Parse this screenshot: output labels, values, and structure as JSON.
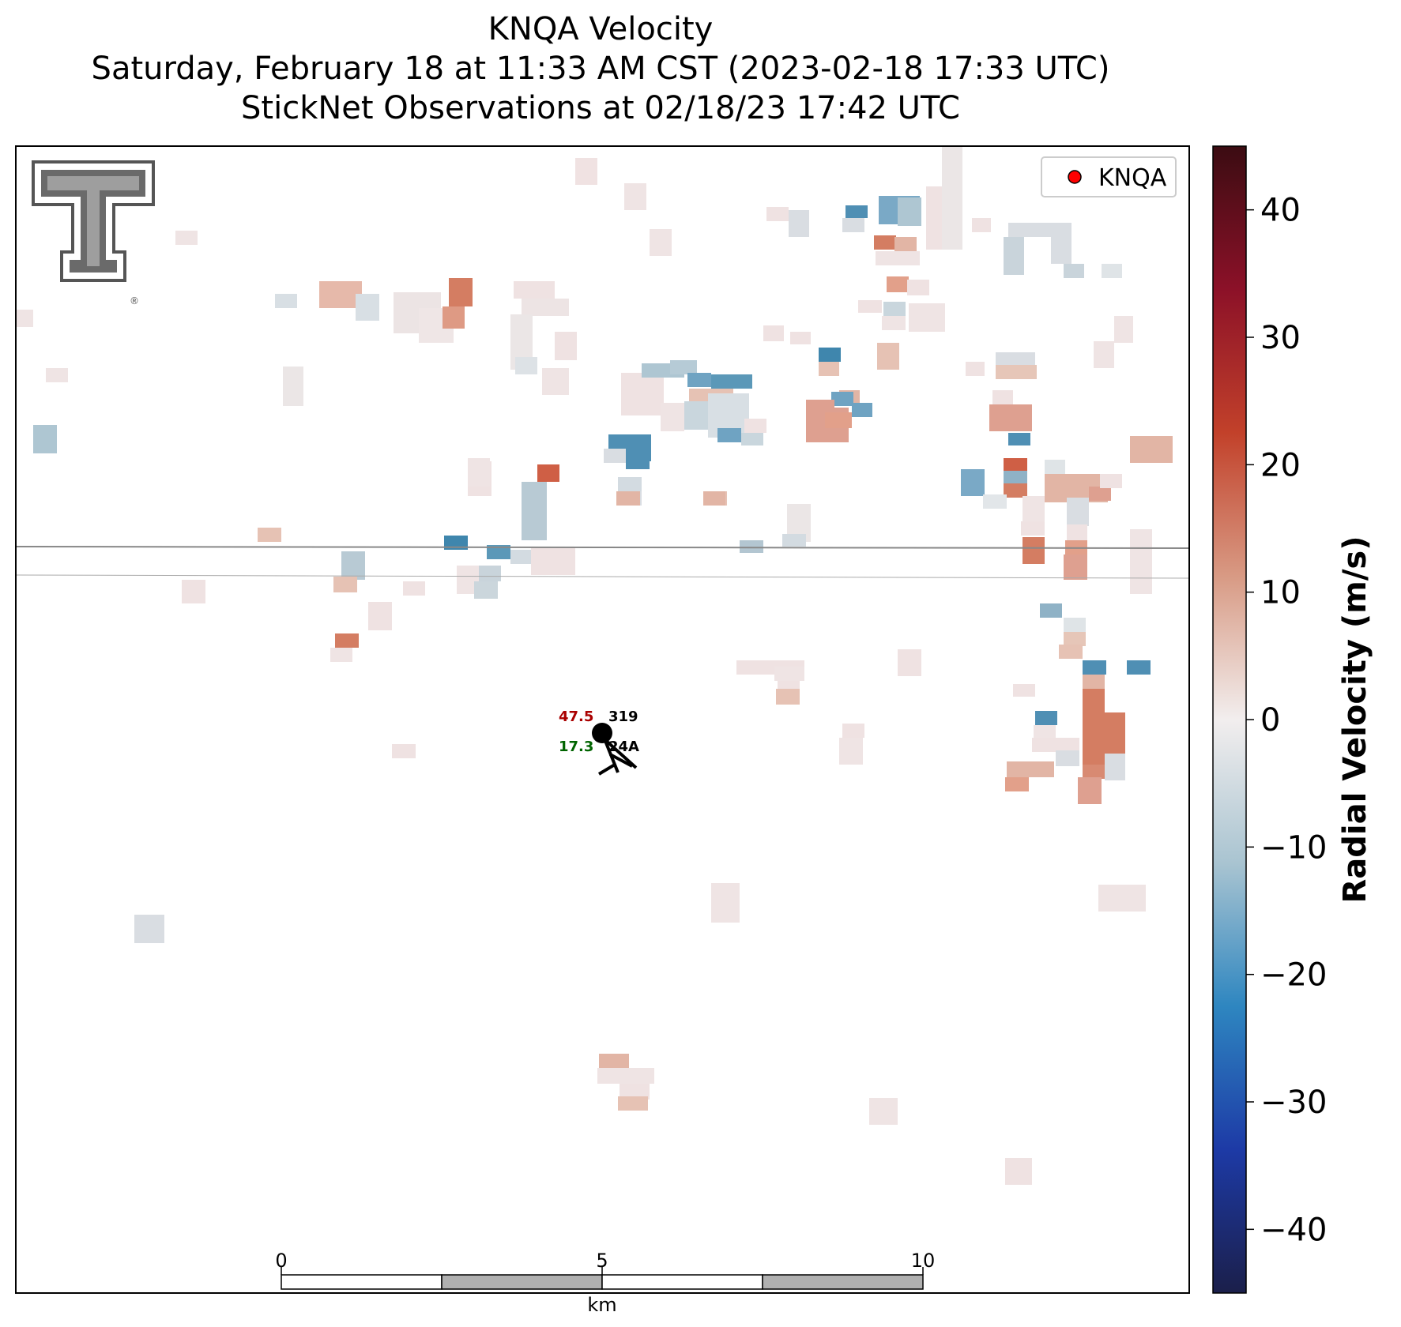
{
  "header": {
    "title_line1": "KNQA Velocity",
    "title_line2": "Saturday, February 18 at 11:33 AM CST (2023-02-18 17:33 UTC)",
    "title_line3": "StickNet Observations at 02/18/23 17:42 UTC"
  },
  "legend": {
    "label": "KNQA",
    "marker_color": "#ff0000"
  },
  "logo": {
    "name": "Texas Tech Double T",
    "color": "#606060"
  },
  "colorbar": {
    "label": "Radial Velocity (m/s)",
    "range": [
      -45,
      45
    ],
    "ticks": [
      40,
      30,
      20,
      10,
      0,
      -10,
      -20,
      -30,
      -40
    ],
    "tick_labels": [
      "40",
      "30",
      "20",
      "10",
      "0",
      "−10",
      "−20",
      "−30",
      "−40"
    ],
    "stops": [
      "#1b1f4a",
      "#1d3aa6",
      "#2e86c0",
      "#a9c4d1",
      "#f2eeee",
      "#d89a84",
      "#c2412a",
      "#8c1128",
      "#3b0c12"
    ]
  },
  "scalebar": {
    "tick_labels": [
      "0",
      "5",
      "10"
    ],
    "unit": "km",
    "range_km": [
      0,
      10
    ]
  },
  "station": {
    "id": "24A",
    "label_top_left": "47.5",
    "label_top_right": "319",
    "label_bottom_left": "17.3",
    "label_top_left_color": "#aa0000",
    "label_bottom_left_color": "#006400"
  }
}
